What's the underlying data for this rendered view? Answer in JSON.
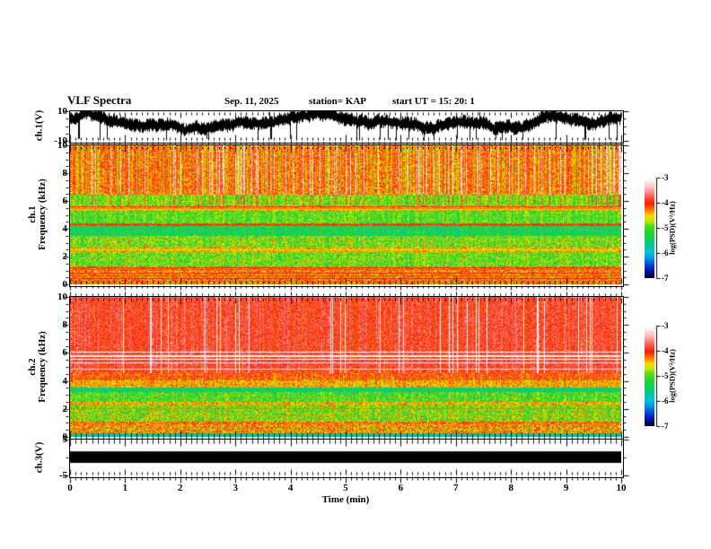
{
  "header": {
    "title": "VLF Spectra",
    "date": "Sep. 11, 2025",
    "station": "station= KAP",
    "start_ut": "start UT =  15: 20: 1"
  },
  "axes": {
    "x": {
      "label": "Time (min)",
      "range": [
        0,
        10
      ],
      "ticks": [
        "0",
        "1",
        "2",
        "3",
        "4",
        "5",
        "6",
        "7",
        "8",
        "9",
        "10"
      ],
      "minor_per_major": 10
    }
  },
  "panels": [
    {
      "id": "ch1-waveform",
      "ylabel": "ch.1(V)",
      "yticks": [
        {
          "v": 10,
          "label": "10"
        },
        {
          "v": -10,
          "label": "-10"
        }
      ]
    },
    {
      "id": "ch1-spectrogram",
      "ylabel_ch": "ch.1",
      "ylabel_freq": "Frequency (kHz)",
      "yticks": [
        {
          "v": 0,
          "label": "0"
        },
        {
          "v": 2,
          "label": "2"
        },
        {
          "v": 4,
          "label": "4"
        },
        {
          "v": 6,
          "label": "6"
        },
        {
          "v": 8,
          "label": "8"
        },
        {
          "v": 10,
          "label": "10"
        }
      ]
    },
    {
      "id": "ch2-spectrogram",
      "ylabel_ch": "ch.2",
      "ylabel_freq": "Frequency (kHz)",
      "yticks": [
        {
          "v": 0,
          "label": "0"
        },
        {
          "v": 2,
          "label": "2"
        },
        {
          "v": 4,
          "label": "4"
        },
        {
          "v": 6,
          "label": "6"
        },
        {
          "v": 8,
          "label": "8"
        },
        {
          "v": 10,
          "label": "10"
        }
      ]
    },
    {
      "id": "ch3-waveform",
      "ylabel": "ch.3(V)",
      "yticks": [
        {
          "v": 5,
          "label": "5"
        },
        {
          "v": -5,
          "label": "-5"
        }
      ]
    }
  ],
  "colorbars": [
    {
      "label": "log(PSD)(V²/Hz)",
      "ticks": [
        "-3",
        "-4",
        "-5",
        "-6",
        "-7"
      ],
      "range": [
        -3,
        -7
      ]
    },
    {
      "label": "log(PSD)(V²/Hz)",
      "ticks": [
        "-3",
        "-4",
        "-5",
        "-6",
        "-7"
      ],
      "range": [
        -3,
        -7
      ]
    }
  ],
  "chart_data": {
    "layout": "4 vertically stacked panels sharing a common time axis 0-10 min; two rainbow colorbars at right",
    "x_axis": {
      "label": "Time (min)",
      "range": [
        0,
        10
      ],
      "major_ticks": [
        0,
        1,
        2,
        3,
        4,
        5,
        6,
        7,
        8,
        9,
        10
      ]
    },
    "z_label": "log(PSD)(V²/Hz)",
    "z_range": [
      -7,
      -3
    ],
    "colormap_stops": [
      [
        0.0,
        "#000028"
      ],
      [
        0.08,
        "#0019b4"
      ],
      [
        0.14,
        "#0050dc"
      ],
      [
        0.2,
        "#0096e6"
      ],
      [
        0.26,
        "#00c3dc"
      ],
      [
        0.33,
        "#00c89b"
      ],
      [
        0.4,
        "#14d24b"
      ],
      [
        0.46,
        "#28d232"
      ],
      [
        0.52,
        "#50dc14"
      ],
      [
        0.57,
        "#c8e600"
      ],
      [
        0.62,
        "#ffd800"
      ],
      [
        0.67,
        "#ff8200"
      ],
      [
        0.74,
        "#f51e00"
      ],
      [
        0.81,
        "#ff5a50"
      ],
      [
        0.89,
        "#ffb4b4"
      ],
      [
        0.96,
        "#ffeaea"
      ],
      [
        1.0,
        "#ffffff"
      ]
    ],
    "panels": [
      {
        "type": "line",
        "channel": "ch.1",
        "units": "V",
        "y_range": [
          -10,
          10
        ],
        "description": "Dense black broadband noise waveform, mean near +2 V, envelope ±5 V, frequent downward spikes reaching -10 V and occasional upward spikes to +10 V",
        "gen": {
          "mean": 1.8,
          "spike_rate": 0.065
        }
      },
      {
        "type": "heatmap",
        "channel": "ch.1",
        "y_label": "Frequency (kHz)",
        "y_range": [
          0,
          10
        ],
        "z_label": "log(PSD)(V²/Hz)",
        "z_range": [
          -7,
          -3
        ],
        "description": "Spectrogram: 6.5-10 kHz yellow-orange with dense red vertical streaks; 4.5-6.5 kHz green with red streaks and dark horizontal lines near 5.5 kHz; red line near 4.35 kHz; cyan-green band 3.5-4.2 kHz; green-yellow 1.3-3.5 kHz with red speckles; yellow-red stripes near 1 kHz; hot orange-red band 0-1 kHz",
        "bands": [
          {
            "f_lo": 6.5,
            "f_hi": 10.0,
            "level": -4.2,
            "noise": 0.4,
            "streak": 0.9,
            "red_streak": true
          },
          {
            "f_lo": 5.7,
            "f_hi": 6.5,
            "level": -4.85,
            "noise": 0.4,
            "streak": 0.7,
            "red_streak": true
          },
          {
            "f_lo": 5.35,
            "f_hi": 5.7,
            "level": -4.6,
            "noise": 0.5,
            "streak": 0.5
          },
          {
            "f_lo": 4.45,
            "f_hi": 5.35,
            "level": -5.0,
            "noise": 0.4,
            "streak": 0.45
          },
          {
            "f_lo": 4.25,
            "f_hi": 4.45,
            "level": -4.05,
            "noise": 0.3,
            "streak": 0.3
          },
          {
            "f_lo": 3.5,
            "f_hi": 4.25,
            "level": -5.35,
            "noise": 0.4,
            "streak": 0.3
          },
          {
            "f_lo": 2.65,
            "f_hi": 3.5,
            "level": -4.9,
            "noise": 0.5,
            "streak": 0.45,
            "speckle": 0.02
          },
          {
            "f_lo": 2.35,
            "f_hi": 2.65,
            "level": -4.5,
            "noise": 0.4,
            "streak": 0.3
          },
          {
            "f_lo": 1.35,
            "f_hi": 2.35,
            "level": -4.95,
            "noise": 0.45,
            "streak": 0.4,
            "speckle": 0.015
          },
          {
            "f_lo": 0.95,
            "f_hi": 1.35,
            "level": -4.3,
            "noise": 0.5,
            "streak": 0.3
          },
          {
            "f_lo": 0.0,
            "f_hi": 0.95,
            "level": -4.3,
            "noise": 0.6,
            "streak": 0.4,
            "speckle": 0.05
          }
        ],
        "hlines": [
          {
            "f": 5.62,
            "level": -4.1
          },
          {
            "f": 5.5,
            "level": -4.3
          },
          {
            "f": 5.42,
            "level": -4.5
          },
          {
            "f": 4.35,
            "level": -3.95
          },
          {
            "f": 2.5,
            "level": -4.55
          },
          {
            "f": 1.25,
            "level": -4.05
          },
          {
            "f": 1.08,
            "level": -4.2
          },
          {
            "f": 0.85,
            "level": -4.1
          },
          {
            "f": 0.62,
            "level": -4.15
          },
          {
            "f": 0.45,
            "level": -4.0
          },
          {
            "f": 0.28,
            "level": -4.2
          }
        ]
      },
      {
        "type": "heatmap",
        "channel": "ch.2",
        "y_label": "Frequency (kHz)",
        "y_range": [
          0,
          10
        ],
        "z_label": "log(PSD)(V²/Hz)",
        "z_range": [
          -7,
          -3
        ],
        "description": "Spectrogram: 4.6-10 kHz saturated red with pale pink-white vertical streaks and thin white horizontal lines near 5-6 kHz; yellow band 3.5-4 kHz; cyan band 3.25-3.55 kHz; green 2.5-3.25 kHz; yellow 2.2-2.5 kHz; green-yellow with red speckles 1.1-2.2 kHz; dark red near 1 kHz; yellow-orange 0.3-0.9 kHz; cyan-blue at 0-0.3 kHz",
        "bands": [
          {
            "f_lo": 4.6,
            "f_hi": 10.0,
            "level": -3.9,
            "noise": 0.3,
            "streak": 0.45,
            "white_streak": true
          },
          {
            "f_lo": 4.05,
            "f_hi": 4.6,
            "level": -4.15,
            "noise": 0.35,
            "streak": 0.4
          },
          {
            "f_lo": 3.55,
            "f_hi": 4.05,
            "level": -4.45,
            "noise": 0.35,
            "streak": 0.3
          },
          {
            "f_lo": 3.25,
            "f_hi": 3.55,
            "level": -5.45,
            "noise": 0.35,
            "streak": 0.25
          },
          {
            "f_lo": 2.55,
            "f_hi": 3.25,
            "level": -5.05,
            "noise": 0.45,
            "streak": 0.4,
            "speckle": 0.02
          },
          {
            "f_lo": 2.25,
            "f_hi": 2.55,
            "level": -4.5,
            "noise": 0.4,
            "streak": 0.3
          },
          {
            "f_lo": 1.15,
            "f_hi": 2.25,
            "level": -4.9,
            "noise": 0.5,
            "streak": 0.45,
            "speckle": 0.03
          },
          {
            "f_lo": 0.9,
            "f_hi": 1.15,
            "level": -4.2,
            "noise": 0.4,
            "streak": 0.3
          },
          {
            "f_lo": 0.3,
            "f_hi": 0.9,
            "level": -4.4,
            "noise": 0.5,
            "streak": 0.35,
            "speckle": 0.04
          },
          {
            "f_lo": 0.0,
            "f_hi": 0.3,
            "level": -5.7,
            "noise": 0.4,
            "streak": 0.2
          }
        ],
        "hlines": [
          {
            "f": 6.1,
            "level": -3.1
          },
          {
            "f": 5.8,
            "level": -3.15
          },
          {
            "f": 5.55,
            "level": -3.1
          },
          {
            "f": 5.3,
            "level": -3.2
          },
          {
            "f": 4.85,
            "level": -3.25
          },
          {
            "f": 2.05,
            "level": -4.3
          },
          {
            "f": 1.55,
            "level": -4.35
          }
        ]
      },
      {
        "type": "line",
        "channel": "ch.3",
        "units": "V",
        "y_range": [
          -5,
          5
        ],
        "description": "Saturated/clipped signal rendered as a solid black horizontal bar spanning the full 10 minutes",
        "bar": {
          "v_top": 1.7,
          "v_bottom": -1.5
        }
      }
    ]
  }
}
